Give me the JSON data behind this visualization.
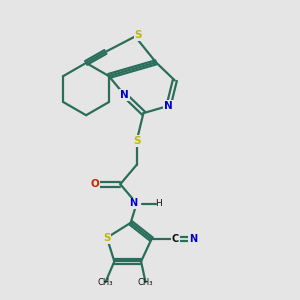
{
  "background_color": "#e5e5e5",
  "bond_color": "#2a6e5a",
  "bond_width": 1.6,
  "S_color": "#bbbb00",
  "N_color": "#0000cc",
  "O_color": "#cc2200",
  "C_color": "#111111",
  "text_color": "#111111",
  "figsize": [
    3.0,
    3.0
  ],
  "dpi": 100,
  "xlim": [
    0,
    10
  ],
  "ylim": [
    0,
    10
  ]
}
